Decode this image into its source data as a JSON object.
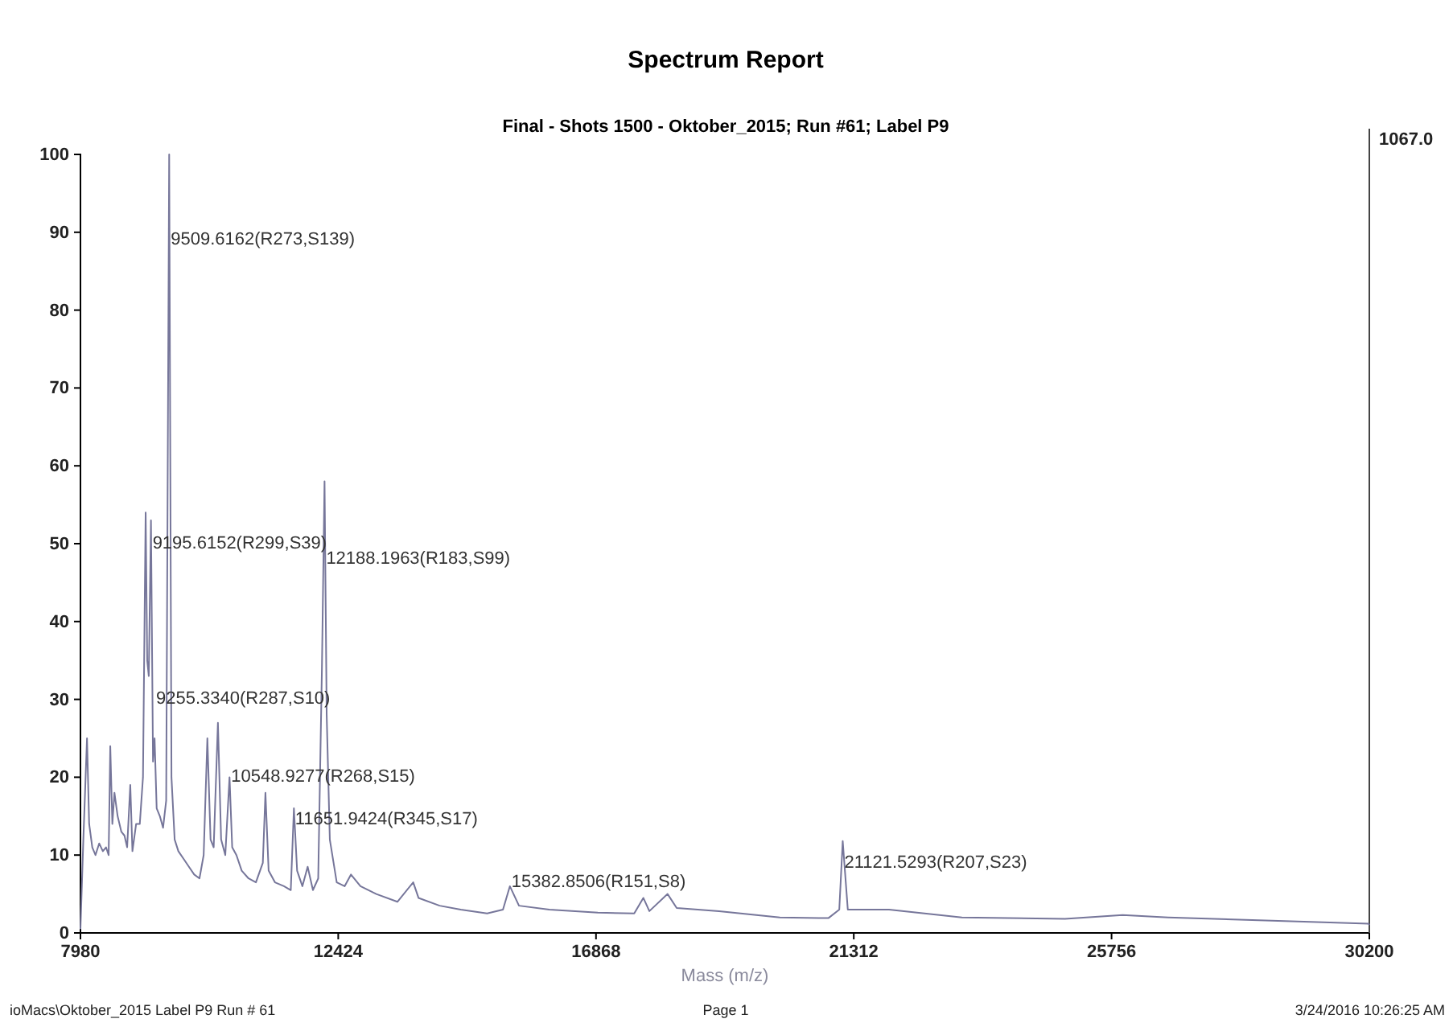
{
  "chart_data": {
    "type": "line",
    "title": "Spectrum Report",
    "subtitle": "Final - Shots 1500 - Oktober_2015; Run #61; Label P9",
    "xlabel": "Mass (m/z)",
    "xlim": [
      7980,
      30200
    ],
    "xticks": [
      7980,
      12424,
      16868,
      21312,
      25756,
      30200
    ],
    "ylim": [
      0,
      100
    ],
    "yticks": [
      0,
      10,
      20,
      30,
      40,
      50,
      60,
      70,
      80,
      90,
      100
    ],
    "grid": false,
    "marker": "none",
    "line_style": "solid",
    "series": [
      {
        "color": "#76769a",
        "x": [
          7980,
          8030,
          8093,
          8130,
          8184,
          8239,
          8303,
          8366,
          8421,
          8466,
          8494,
          8530,
          8566,
          8621,
          8685,
          8739,
          8785,
          8839,
          8876,
          8940,
          9003,
          9058,
          9104,
          9131,
          9158,
          9195.6,
          9231,
          9258,
          9294,
          9349,
          9404,
          9458,
          9509.6,
          9549,
          9604,
          9668,
          9759,
          9850,
          9941,
          10032,
          10104,
          10168,
          10223,
          10277,
          10350,
          10405,
          10477,
          10550,
          10596,
          10669,
          10760,
          10878,
          11005,
          11124,
          11169,
          11224,
          11333,
          11488,
          11606,
          11660,
          11715,
          11806,
          11897,
          11988,
          12079,
          12143,
          12188,
          12225,
          12279,
          12398,
          12534,
          12643,
          12807,
          13080,
          13444,
          13717,
          13808,
          14172,
          14536,
          14991,
          15264,
          15383,
          15540,
          16063,
          16900,
          17527,
          17684,
          17788,
          18102,
          18259,
          18991,
          20037,
          20874,
          21062,
          21121.5,
          21209,
          21920,
          23175,
          24953,
          25947,
          26731,
          28405,
          30183,
          30200
        ],
        "values": [
          0.5,
          12,
          25,
          14,
          11,
          10,
          11.5,
          10.5,
          11,
          10,
          24,
          14,
          18,
          15,
          13,
          12.5,
          11,
          19,
          10.5,
          14,
          14,
          20,
          54,
          35,
          33,
          53,
          22,
          25,
          16,
          15,
          13.5,
          17,
          100,
          20,
          12,
          10.5,
          9.5,
          8.5,
          7.5,
          7,
          10,
          25,
          12,
          11,
          27,
          12,
          10,
          20,
          11,
          10,
          8,
          7,
          6.5,
          9,
          18,
          8,
          6.5,
          6,
          5.5,
          16,
          8,
          6,
          8.5,
          5.5,
          7,
          34,
          58,
          28,
          12,
          6.5,
          6,
          7.5,
          6,
          5,
          4,
          6.5,
          4.5,
          3.5,
          3,
          2.5,
          3,
          6,
          3.5,
          3,
          2.6,
          2.5,
          4.5,
          2.8,
          5,
          3.2,
          2.8,
          2,
          1.9,
          3,
          11.8,
          3,
          3,
          2,
          1.8,
          2.3,
          2,
          1.6,
          1.2,
          1
        ]
      }
    ],
    "annotations": [
      {
        "text": "9509.6162(R273,S139)",
        "x": 9509.6162,
        "y": 89
      },
      {
        "text": "9195.6152(R299,S39)",
        "x": 9195.6152,
        "y": 50
      },
      {
        "text": "12188.1963(R183,S99)",
        "x": 12188.1963,
        "y": 48
      },
      {
        "text": "9255.3340(R287,S10)",
        "x": 9255.334,
        "y": 30
      },
      {
        "text": "10548.9277(R268,S15)",
        "x": 10548.9277,
        "y": 20
      },
      {
        "text": "11651.9424(R345,S17)",
        "x": 11651.9424,
        "y": 14.5
      },
      {
        "text": "15382.8506(R151,S8)",
        "x": 15382.8506,
        "y": 6.5
      },
      {
        "text": "21121.5293(R207,S23)",
        "x": 21121.5293,
        "y": 9
      },
      "1067.0",
      "ioMacs\\Oktober_2015 Label P9 Run # 61",
      "Page 1",
      "3/24/2016 10:26:25 AM"
    ]
  }
}
